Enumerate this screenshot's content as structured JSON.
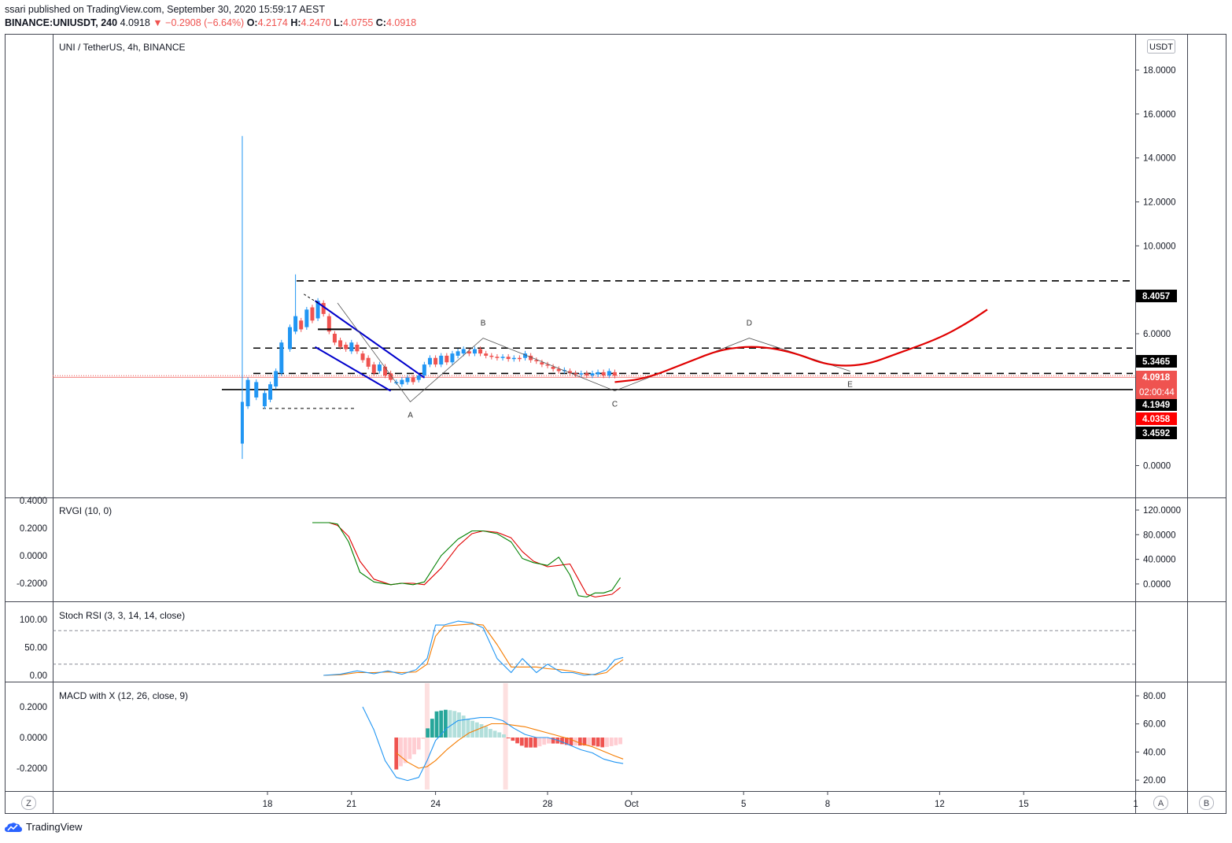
{
  "header": {
    "publisher_line": "ssari published on TradingView.com, September 30, 2020 15:59:17 AEST",
    "symbol": "BINANCE:UNIUSDT, 240",
    "last": "4.0918",
    "change": "▼ −0.2908 (−6.64%)",
    "o_label": "O:",
    "o": "4.2174",
    "h_label": "H:",
    "h": "4.2470",
    "l_label": "L:",
    "l": "4.0755",
    "c_label": "C:",
    "c": "4.0918"
  },
  "footer": {
    "brand": "TradingView"
  },
  "buttons": {
    "left": "Z",
    "auto": "A",
    "right": "B"
  },
  "colors": {
    "up": "#2196f3",
    "down": "#ef5350",
    "projection": "#e00000",
    "level_line": "#000000",
    "channel": "#0000cc",
    "rvgi_main": "#008000",
    "rvgi_signal": "#e00000",
    "stoch_k": "#2196f3",
    "stoch_d": "#f57c00",
    "macd_line": "#2196f3",
    "signal_line": "#f57c00",
    "hist_up_strong": "#26a69a",
    "hist_up_weak": "#b2dfdb",
    "hist_down_strong": "#ef5350",
    "hist_down_weak": "#ffcdd2"
  },
  "chart_data": [
    {
      "type": "candlestick",
      "title": "UNI / TetherUS, 4h, BINANCE",
      "currency": "USDT",
      "ylim": [
        0,
        18
      ],
      "yticks": [
        "18.0000",
        "16.0000",
        "14.0000",
        "12.0000",
        "10.0000",
        "6.0000",
        "0.0000"
      ],
      "xticks": [
        {
          "label": "18",
          "day": 18
        },
        {
          "label": "21",
          "day": 21
        },
        {
          "label": "24",
          "day": 24
        },
        {
          "label": "28",
          "day": 28
        },
        {
          "label": "Oct",
          "day": 31
        },
        {
          "label": "5",
          "day": 35
        },
        {
          "label": "8",
          "day": 38
        },
        {
          "label": "12",
          "day": 42
        },
        {
          "label": "15",
          "day": 45
        },
        {
          "label": "1",
          "day": 49
        }
      ],
      "spike": {
        "day": 17.1,
        "open": 1.0,
        "high": 15.0,
        "low": 0.3,
        "close": 2.9
      },
      "levels": [
        {
          "price": 8.4057,
          "label": "8.4057",
          "style": "dashed"
        },
        {
          "price": 5.3465,
          "label": "5.3465",
          "style": "dashed"
        },
        {
          "price": 4.1949,
          "label": "4.1949",
          "style": "dashed"
        },
        {
          "price": 3.4592,
          "label": "3.4592",
          "style": "solid"
        },
        {
          "price": 4.0358,
          "label": "4.0358",
          "style": "marker"
        }
      ],
      "last_price": {
        "price": 4.0918,
        "label": "4.0918",
        "countdown": "02:00:44"
      },
      "pattern_points": [
        {
          "label": "",
          "day": 20.5,
          "price": 7.4
        },
        {
          "label": "A",
          "day": 23.1,
          "price": 2.9
        },
        {
          "label": "B",
          "day": 25.7,
          "price": 5.8
        },
        {
          "label": "C",
          "day": 30.4,
          "price": 3.4
        },
        {
          "label": "D",
          "day": 35.2,
          "price": 5.8
        },
        {
          "label": "E",
          "day": 38.8,
          "price": 4.3
        }
      ],
      "projection": [
        {
          "day": 30.4,
          "price": 3.8
        },
        {
          "day": 31.5,
          "price": 3.95
        },
        {
          "day": 33.0,
          "price": 4.7
        },
        {
          "day": 34.2,
          "price": 5.3
        },
        {
          "day": 35.5,
          "price": 5.45
        },
        {
          "day": 36.8,
          "price": 5.15
        },
        {
          "day": 38.0,
          "price": 4.55
        },
        {
          "day": 39.3,
          "price": 4.55
        },
        {
          "day": 40.5,
          "price": 5.1
        },
        {
          "day": 42.0,
          "price": 5.8
        },
        {
          "day": 43.0,
          "price": 6.5
        },
        {
          "day": 43.7,
          "price": 7.1
        }
      ]
    },
    {
      "type": "line",
      "title": "RVGI (10, 0)",
      "yticks_left": [
        "0.4000",
        "0.2000",
        "0.0000",
        "-0.2000"
      ],
      "yticks_right": [
        "120.0000",
        "80.0000",
        "40.0000",
        "0.0000"
      ],
      "ylim": [
        -0.32,
        0.4
      ],
      "series": [
        {
          "name": "",
          "role": "main",
          "x": [
            19.6,
            20.2,
            20.5,
            20.9,
            21.3,
            21.8,
            22.4,
            22.8,
            23.2,
            23.6,
            24.2,
            24.8,
            25.3,
            25.7,
            26.2,
            26.7,
            27.1,
            27.5,
            28.0,
            28.4,
            28.8,
            29.1,
            29.4,
            29.7,
            30.0,
            30.3,
            30.6
          ],
          "values": [
            0.24,
            0.24,
            0.23,
            0.1,
            -0.12,
            -0.19,
            -0.21,
            -0.2,
            -0.21,
            -0.19,
            0.0,
            0.12,
            0.18,
            0.18,
            0.16,
            0.1,
            -0.02,
            -0.05,
            -0.07,
            -0.01,
            -0.14,
            -0.29,
            -0.3,
            -0.27,
            -0.27,
            -0.25,
            -0.16
          ]
        },
        {
          "name": "",
          "role": "signal",
          "x": [
            19.6,
            20.2,
            20.5,
            20.9,
            21.3,
            21.8,
            22.4,
            22.8,
            23.2,
            23.6,
            24.2,
            24.8,
            25.3,
            25.7,
            26.2,
            26.7,
            27.1,
            27.5,
            28.0,
            28.4,
            28.8,
            29.1,
            29.4,
            29.7,
            30.0,
            30.3,
            30.6
          ],
          "values": [
            0.24,
            0.24,
            0.22,
            0.14,
            -0.04,
            -0.17,
            -0.21,
            -0.2,
            -0.2,
            -0.21,
            -0.09,
            0.07,
            0.16,
            0.18,
            0.17,
            0.13,
            0.03,
            -0.04,
            -0.08,
            -0.07,
            -0.06,
            -0.17,
            -0.28,
            -0.3,
            -0.29,
            -0.28,
            -0.23
          ]
        }
      ]
    },
    {
      "type": "line",
      "title": "Stoch RSI (3, 3, 14, 14, close)",
      "yticks": [
        "100.00",
        "50.00",
        "0.00"
      ],
      "ylim": [
        -5,
        110
      ],
      "bands": [
        80,
        20
      ],
      "series": [
        {
          "name": "",
          "role": "k",
          "x": [
            20.0,
            20.6,
            21.2,
            21.8,
            22.3,
            22.8,
            23.3,
            23.7,
            24.0,
            24.3,
            24.8,
            25.3,
            25.7,
            26.2,
            26.7,
            27.1,
            27.6,
            28.0,
            28.5,
            28.9,
            29.3,
            29.7,
            30.1,
            30.4,
            30.7
          ],
          "values": [
            0,
            2,
            8,
            3,
            8,
            2,
            10,
            30,
            90,
            90,
            97,
            94,
            85,
            30,
            5,
            30,
            5,
            20,
            5,
            5,
            0,
            2,
            10,
            28,
            32
          ]
        },
        {
          "name": "",
          "role": "d",
          "x": [
            20.0,
            20.6,
            21.2,
            21.8,
            22.3,
            22.8,
            23.3,
            23.7,
            24.0,
            24.3,
            24.8,
            25.3,
            25.7,
            26.2,
            26.7,
            27.1,
            27.6,
            28.0,
            28.5,
            28.9,
            29.3,
            29.7,
            30.1,
            30.4,
            30.7
          ],
          "values": [
            0,
            1,
            5,
            5,
            6,
            5,
            6,
            20,
            70,
            88,
            90,
            92,
            90,
            55,
            15,
            15,
            15,
            12,
            10,
            7,
            3,
            1,
            5,
            18,
            28
          ]
        }
      ]
    },
    {
      "type": "line",
      "title": "MACD with X (12, 26, close, 9)",
      "yticks_left": [
        "0.2000",
        "0.0000",
        "-0.2000"
      ],
      "yticks_right": [
        "80.00",
        "60.00",
        "40.00",
        "20.00"
      ],
      "ylim": [
        -0.32,
        0.3
      ],
      "series": [
        {
          "name": "",
          "role": "macd",
          "x": [
            21.4,
            21.8,
            22.2,
            22.6,
            23.0,
            23.4,
            23.7,
            24.0,
            24.4,
            24.8,
            25.2,
            25.6,
            26.0,
            26.4,
            26.8,
            27.2,
            27.6,
            28.0,
            28.4,
            28.8,
            29.2,
            29.6,
            30.0,
            30.4,
            30.7
          ],
          "values": [
            0.2,
            0.05,
            -0.15,
            -0.26,
            -0.28,
            -0.26,
            -0.15,
            -0.02,
            0.06,
            0.11,
            0.12,
            0.13,
            0.13,
            0.11,
            0.06,
            0.02,
            0.0,
            0.0,
            -0.02,
            -0.05,
            -0.08,
            -0.1,
            -0.14,
            -0.16,
            -0.17
          ]
        },
        {
          "name": "",
          "role": "signal",
          "x": [
            22.6,
            23.0,
            23.4,
            23.7,
            24.0,
            24.4,
            24.8,
            25.2,
            25.6,
            26.0,
            26.4,
            26.8,
            27.2,
            27.6,
            28.0,
            28.4,
            28.8,
            29.2,
            29.6,
            30.0,
            30.4,
            30.7
          ],
          "values": [
            -0.1,
            -0.16,
            -0.2,
            -0.19,
            -0.15,
            -0.08,
            -0.02,
            0.03,
            0.06,
            0.09,
            0.09,
            0.08,
            0.07,
            0.05,
            0.03,
            0.01,
            -0.01,
            -0.04,
            -0.06,
            -0.09,
            -0.12,
            -0.14
          ]
        }
      ],
      "highlight_days": [
        23.7,
        26.5
      ]
    }
  ]
}
